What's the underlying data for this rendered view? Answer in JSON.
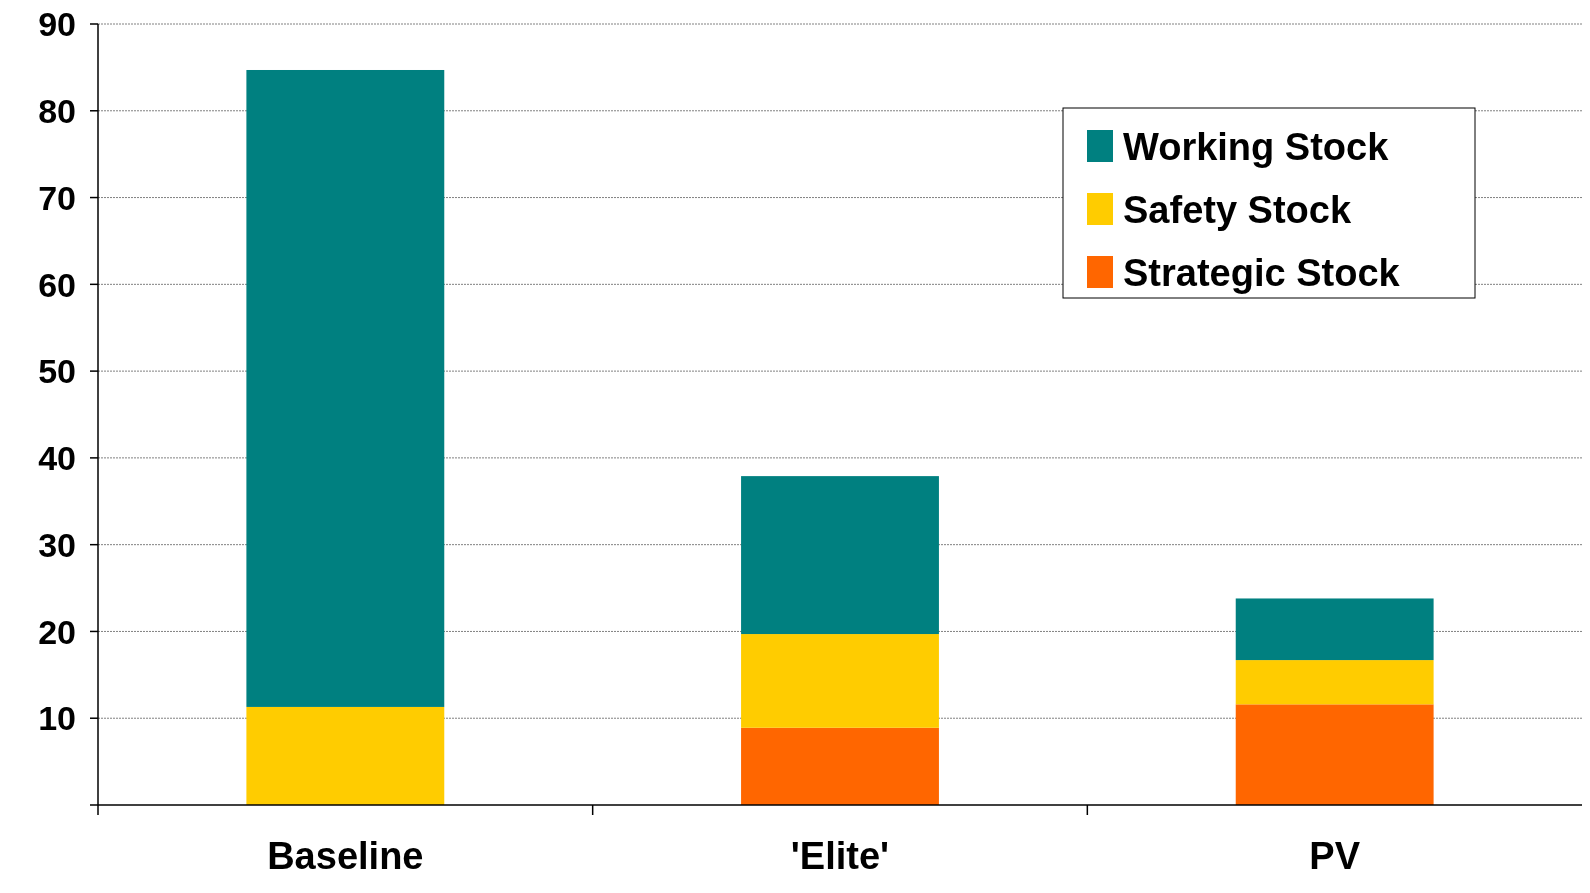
{
  "chart_data": {
    "type": "bar",
    "stacked": true,
    "categories": [
      "Baseline",
      "'Elite'",
      "PV"
    ],
    "series": [
      {
        "name": "Strategic Stock",
        "color": "#ff6600",
        "values": [
          0,
          8.9,
          11.6
        ]
      },
      {
        "name": "Safety Stock",
        "color": "#ffcc00",
        "values": [
          11.3,
          10.8,
          5.1
        ]
      },
      {
        "name": "Working Stock",
        "color": "#008080",
        "values": [
          73.4,
          18.2,
          7.1
        ]
      }
    ],
    "ylim": [
      0,
      90
    ],
    "yticks": [
      {
        "value": 0,
        "label": null
      },
      10,
      20,
      30,
      40,
      50,
      60,
      70,
      80,
      90
    ],
    "grid": "y",
    "legend": "top right"
  }
}
